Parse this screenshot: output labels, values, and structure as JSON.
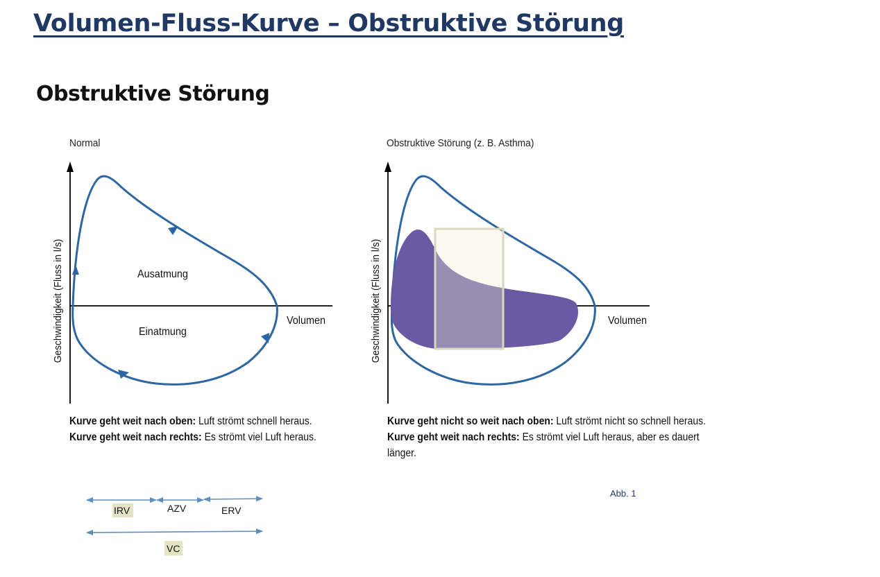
{
  "page": {
    "title": "Volumen-Fluss-Kurve – Obstruktive Störung",
    "subtitle": "Obstruktive Störung",
    "figure_label": "Abb. 1"
  },
  "normal_panel": {
    "title": "Normal",
    "y_axis_label": "Geschwindigkeit (Fluss in l/s)",
    "x_axis_label": "Volumen",
    "upper_label": "Ausatmung",
    "lower_label": "Einatmung",
    "caption": {
      "line1_bold": "Kurve geht weit nach oben:",
      "line1_text": " Luft strömt schnell heraus.",
      "line2_bold": "Kurve geht weit nach rechts:",
      "line2_text": " Es strömt viel Luft heraus."
    }
  },
  "obstructive_panel": {
    "title": "Obstruktive Störung (z. B. Asthma)",
    "y_axis_label": "Geschwindigkeit (Fluss in l/s)",
    "x_axis_label": "Volumen",
    "caption": {
      "bold1": "Kurve geht nicht so weit nach oben:",
      "text1": " Luft strömt nicht so schnell heraus. ",
      "bold2": "Kurve geht weit nach rechts:",
      "text2": " Es strömt viel Luft heraus, aber es dauert länger."
    }
  },
  "volume_legend": {
    "irv": "IRV",
    "azv": "AZV",
    "erv": "ERV",
    "vc": "VC"
  },
  "colors": {
    "title": "#1f3864",
    "curve_blue": "#2e66a3",
    "obstructive_fill": "#6a5aa3",
    "highlight_box": "#d9d6bd",
    "label_highlight": "#e4e4c4"
  }
}
